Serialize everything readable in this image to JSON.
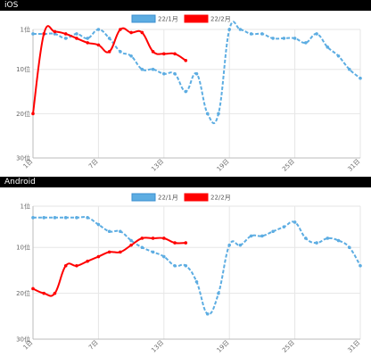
{
  "panels": [
    {
      "title": "iOS",
      "chart_data": {
        "type": "line",
        "x": [
          1,
          2,
          3,
          4,
          5,
          6,
          7,
          8,
          9,
          10,
          11,
          12,
          13,
          14,
          15,
          16,
          17,
          18,
          19,
          20,
          21,
          22,
          23,
          24,
          25,
          26,
          27,
          28,
          29,
          30,
          31
        ],
        "x_ticks": [
          1,
          7,
          13,
          19,
          25,
          31
        ],
        "x_tick_labels": [
          "1日",
          "7日",
          "13日",
          "19日",
          "25日",
          "31日"
        ],
        "y_ticks": [
          1,
          10,
          20,
          30
        ],
        "y_tick_labels": [
          "1位",
          "10位",
          "20位",
          "30位"
        ],
        "ylim": [
          1,
          30
        ],
        "y_inverted": true,
        "series": [
          {
            "name": "22/1月",
            "color": "#5dade2",
            "dashed": true,
            "values": [
              2,
              2,
              2,
              3,
              2,
              3,
              1,
              3,
              6,
              7,
              10,
              10,
              11,
              11,
              15,
              11,
              20,
              20,
              1,
              1,
              2,
              2,
              3,
              3,
              3,
              4,
              2,
              5,
              7,
              10,
              12
            ]
          },
          {
            "name": "22/2月",
            "color": "#ff0000",
            "dashed": false,
            "values": [
              20,
              2,
              1.5,
              2,
              3,
              4,
              4.5,
              6,
              1,
              1.7,
              1.7,
              6,
              6.5,
              6.5,
              8,
              null,
              null,
              null,
              null,
              null,
              null,
              null,
              null,
              null,
              null,
              null,
              null,
              null,
              null,
              null,
              null
            ]
          }
        ]
      }
    },
    {
      "title": "Android",
      "chart_data": {
        "type": "line",
        "x": [
          1,
          2,
          3,
          4,
          5,
          6,
          7,
          8,
          9,
          10,
          11,
          12,
          13,
          14,
          15,
          16,
          17,
          18,
          19,
          20,
          21,
          22,
          23,
          24,
          25,
          26,
          27,
          28,
          29,
          30,
          31
        ],
        "x_ticks": [
          1,
          7,
          13,
          19,
          25,
          31
        ],
        "x_tick_labels": [
          "1日",
          "7日",
          "13日",
          "19日",
          "25日",
          "31日"
        ],
        "y_ticks": [
          1,
          10,
          20,
          30
        ],
        "y_tick_labels": [
          "1位",
          "10位",
          "20位",
          "30位"
        ],
        "ylim": [
          1,
          30
        ],
        "y_inverted": true,
        "series": [
          {
            "name": "22/1月",
            "color": "#5dade2",
            "dashed": true,
            "values": [
              3.5,
              3.5,
              3.5,
              3.5,
              3.5,
              3.5,
              5,
              6.5,
              6.5,
              8.5,
              10,
              11,
              12,
              14,
              14,
              17.5,
              24.5,
              20,
              9.5,
              9.5,
              7.5,
              7.5,
              6.5,
              5.5,
              4.5,
              8,
              9,
              8,
              8.5,
              10,
              14
            ]
          },
          {
            "name": "22/2月",
            "color": "#ff0000",
            "dashed": false,
            "values": [
              19,
              20,
              20,
              14,
              14,
              13,
              12,
              11,
              11,
              9.5,
              8,
              8,
              8,
              9,
              9,
              null,
              null,
              null,
              null,
              null,
              null,
              null,
              null,
              null,
              null,
              null,
              null,
              null,
              null,
              null,
              null
            ]
          }
        ]
      }
    }
  ]
}
